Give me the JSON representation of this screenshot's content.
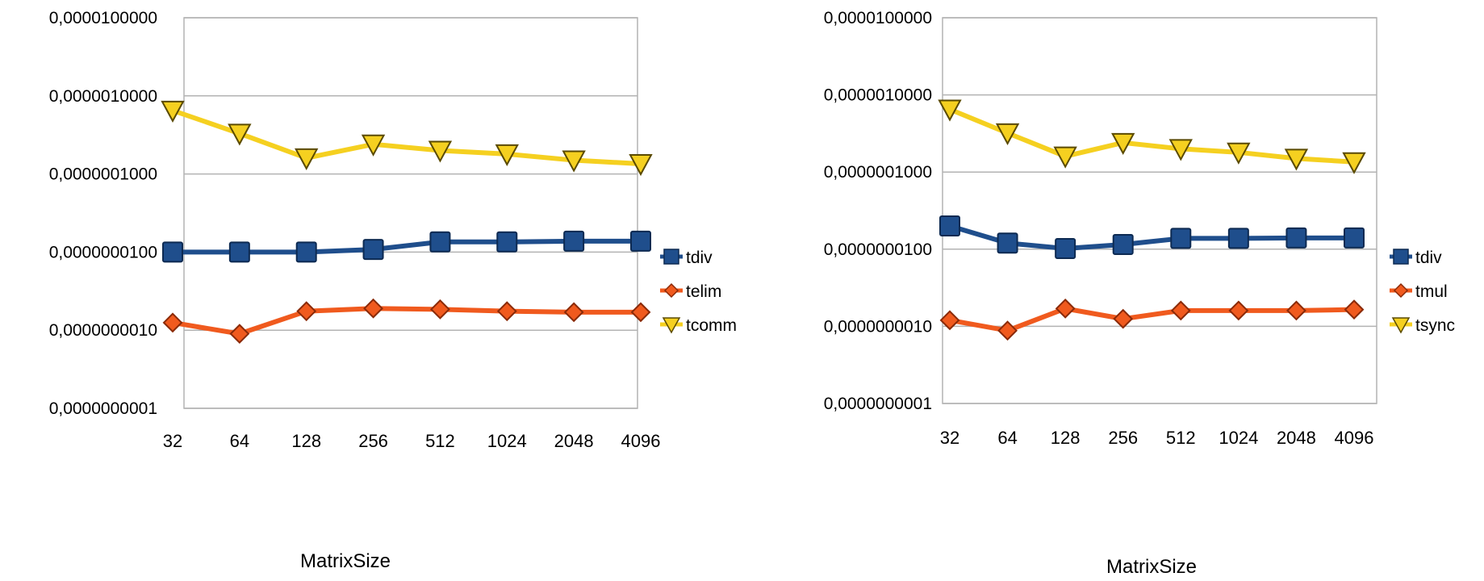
{
  "chart_data": [
    {
      "type": "line",
      "title": "",
      "xlabel": "MatrixSize",
      "ylabel": "",
      "yscale": "log",
      "ylim": [
        1e-10,
        1e-05
      ],
      "y_tick_labels": [
        "0,0000100000",
        "0,0000010000",
        "0,0000001000",
        "0,0000000100",
        "0,0000000010",
        "0,0000000001"
      ],
      "categories": [
        "32",
        "64",
        "128",
        "256",
        "512",
        "1024",
        "2048",
        "4096"
      ],
      "grid": true,
      "legend_position": "right",
      "series": [
        {
          "name": "tdiv",
          "color": "#1f4e8c",
          "marker": "square",
          "values": [
            1e-08,
            1e-08,
            1e-08,
            1.08e-08,
            1.35e-08,
            1.35e-08,
            1.38e-08,
            1.38e-08
          ]
        },
        {
          "name": "telim",
          "color": "#f05a1e",
          "marker": "diamond",
          "values": [
            1.25e-09,
            9e-10,
            1.75e-09,
            1.9e-09,
            1.85e-09,
            1.75e-09,
            1.7e-09,
            1.7e-09
          ]
        },
        {
          "name": "tcomm",
          "color": "#f5d020",
          "marker": "triangle-down",
          "values": [
            6.5e-07,
            3.3e-07,
            1.6e-07,
            2.4e-07,
            2e-07,
            1.8e-07,
            1.5e-07,
            1.35e-07
          ]
        }
      ]
    },
    {
      "type": "line",
      "title": "",
      "xlabel": "MatrixSize",
      "ylabel": "",
      "yscale": "log",
      "ylim": [
        1e-10,
        1e-05
      ],
      "y_tick_labels": [
        "0,0000100000",
        "0,0000010000",
        "0,0000001000",
        "0,0000000100",
        "0,0000000010",
        "0,0000000001"
      ],
      "categories": [
        "32",
        "64",
        "128",
        "256",
        "512",
        "1024",
        "2048",
        "4096"
      ],
      "grid": true,
      "legend_position": "right",
      "series": [
        {
          "name": "tdiv",
          "color": "#1f4e8c",
          "marker": "square",
          "values": [
            2e-08,
            1.2e-08,
            1.02e-08,
            1.15e-08,
            1.38e-08,
            1.38e-08,
            1.4e-08,
            1.4e-08
          ]
        },
        {
          "name": "tmul",
          "color": "#f05a1e",
          "marker": "diamond",
          "values": [
            1.2e-09,
            8.8e-10,
            1.7e-09,
            1.25e-09,
            1.6e-09,
            1.6e-09,
            1.6e-09,
            1.65e-09
          ]
        },
        {
          "name": "tsync",
          "color": "#f5d020",
          "marker": "triangle-down",
          "values": [
            6.5e-07,
            3.2e-07,
            1.6e-07,
            2.4e-07,
            2e-07,
            1.8e-07,
            1.5e-07,
            1.35e-07
          ]
        }
      ]
    }
  ]
}
